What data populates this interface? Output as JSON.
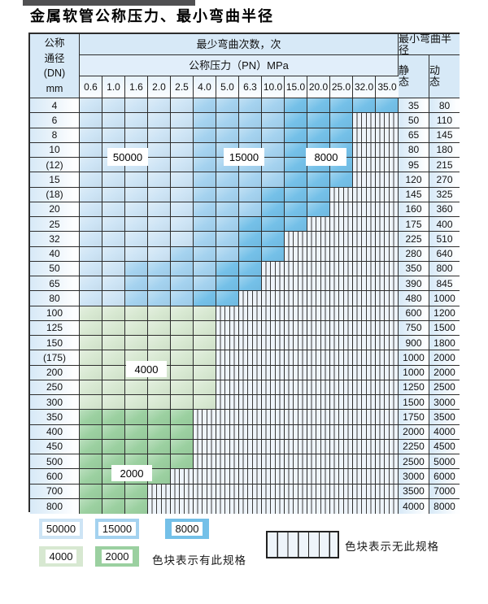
{
  "title": "金属软管公称压力、最小弯曲半径",
  "table": {
    "header": {
      "dn_lines": [
        "公称",
        "通径",
        "(DN)",
        "mm"
      ],
      "bend_cycles": "最少弯曲次数，次",
      "pn": "公称压力（PN）MPa",
      "radius": "最小弯曲半径",
      "static_label": "静 态",
      "dynamic_label": "动 态",
      "pressures": [
        "0.6",
        "1.0",
        "1.6",
        "2.0",
        "2.5",
        "4.0",
        "5.0",
        "6.3",
        "10.0",
        "15.0",
        "20.0",
        "25.0",
        "32.0",
        "35.0"
      ]
    },
    "cell_codes": {
      "L": "50000",
      "M": "15000",
      "D": "8000",
      "G": "4000",
      "E": "2000",
      "X": "no-spec"
    },
    "rows": [
      {
        "dn": "4",
        "cells": "LLLLLMMMMDDDDD",
        "static": "35",
        "dynamic": "80"
      },
      {
        "dn": "6",
        "cells": "LLLLLMMMMDDDXX",
        "static": "50",
        "dynamic": "110"
      },
      {
        "dn": "8",
        "cells": "LLLLLMMMMDDDXX",
        "static": "65",
        "dynamic": "145"
      },
      {
        "dn": "10",
        "cells": "LLLLLMMMMDDDXX",
        "static": "80",
        "dynamic": "180"
      },
      {
        "dn": "(12)",
        "cells": "LLLLLMMMMDDDXX",
        "static": "95",
        "dynamic": "215"
      },
      {
        "dn": "15",
        "cells": "LLLLLMMMMDDDXX",
        "static": "120",
        "dynamic": "270"
      },
      {
        "dn": "(18)",
        "cells": "LLLLLMMMDDDXXX",
        "static": "145",
        "dynamic": "325"
      },
      {
        "dn": "20",
        "cells": "LLLLLMMMDDDXXX",
        "static": "160",
        "dynamic": "360"
      },
      {
        "dn": "25",
        "cells": "LLLLLMMDDDXXXX",
        "static": "175",
        "dynamic": "400"
      },
      {
        "dn": "32",
        "cells": "LLLLLMMDDXXXXX",
        "static": "225",
        "dynamic": "510"
      },
      {
        "dn": "40",
        "cells": "LLLLMMMDDXXXXX",
        "static": "280",
        "dynamic": "640"
      },
      {
        "dn": "50",
        "cells": "LLMMMMDDXXXXXX",
        "static": "350",
        "dynamic": "800"
      },
      {
        "dn": "65",
        "cells": "LLMMMMDDXXXXXX",
        "static": "390",
        "dynamic": "845"
      },
      {
        "dn": "80",
        "cells": "LLMMMDDXXXXXXX",
        "static": "480",
        "dynamic": "1000"
      },
      {
        "dn": "100",
        "cells": "GGGGGGXXXXXXXX",
        "static": "600",
        "dynamic": "1200"
      },
      {
        "dn": "125",
        "cells": "GGGGGGXXXXXXXX",
        "static": "750",
        "dynamic": "1500"
      },
      {
        "dn": "150",
        "cells": "GGGGGGXXXXXXXX",
        "static": "900",
        "dynamic": "1800"
      },
      {
        "dn": "(175)",
        "cells": "GGGGGGXXXXXXXX",
        "static": "1000",
        "dynamic": "2000"
      },
      {
        "dn": "200",
        "cells": "GGGGGGXXXXXXXX",
        "static": "1000",
        "dynamic": "2000"
      },
      {
        "dn": "250",
        "cells": "GGGGGGXXXXXXXX",
        "static": "1250",
        "dynamic": "2500"
      },
      {
        "dn": "300",
        "cells": "GGGGGGXXXXXXXX",
        "static": "1500",
        "dynamic": "3000"
      },
      {
        "dn": "350",
        "cells": "EEEEEXXXXXXXXX",
        "static": "1750",
        "dynamic": "3500"
      },
      {
        "dn": "400",
        "cells": "EEEEEXXXXXXXXX",
        "static": "2000",
        "dynamic": "4000"
      },
      {
        "dn": "450",
        "cells": "EEEEEXXXXXXXXX",
        "static": "2250",
        "dynamic": "4500"
      },
      {
        "dn": "500",
        "cells": "EEEEEXXXXXXXXX",
        "static": "2500",
        "dynamic": "5000"
      },
      {
        "dn": "600",
        "cells": "EEEEXXXXXXXXXX",
        "static": "3000",
        "dynamic": "6000"
      },
      {
        "dn": "700",
        "cells": "EEEXXXXXXXXXXX",
        "static": "3500",
        "dynamic": "7000"
      },
      {
        "dn": "800",
        "cells": "EEEXXXXXXXXXXX",
        "static": "4000",
        "dynamic": "8000"
      }
    ],
    "region_labels": [
      {
        "id": "ov-50000",
        "text": "50000"
      },
      {
        "id": "ov-15000",
        "text": "15000"
      },
      {
        "id": "ov-8000",
        "text": "8000"
      },
      {
        "id": "ov-4000",
        "text": "4000"
      },
      {
        "id": "ov-2000",
        "text": "2000"
      }
    ]
  },
  "legend": {
    "items": [
      {
        "label": "50000",
        "shade": "blue-light"
      },
      {
        "label": "15000",
        "shade": "blue-mid"
      },
      {
        "label": "8000",
        "shade": "blue-dark"
      },
      {
        "label": "4000",
        "shade": "green-light"
      },
      {
        "label": "2000",
        "shade": "green-dark"
      }
    ],
    "has_spec_text": "色块表示有此规格",
    "no_spec_text": "色块表示无此规格"
  },
  "colors": {
    "blue_50000": "#cde4f5",
    "blue_15000": "#a4d2ef",
    "blue_8000": "#74c0e8",
    "green_4000": "#d7e8d1",
    "green_2000": "#9bd0a0",
    "hatch_bg": "#eef4fa",
    "grid": "#2d2d2d",
    "header_bg": "#d7e9f7"
  }
}
